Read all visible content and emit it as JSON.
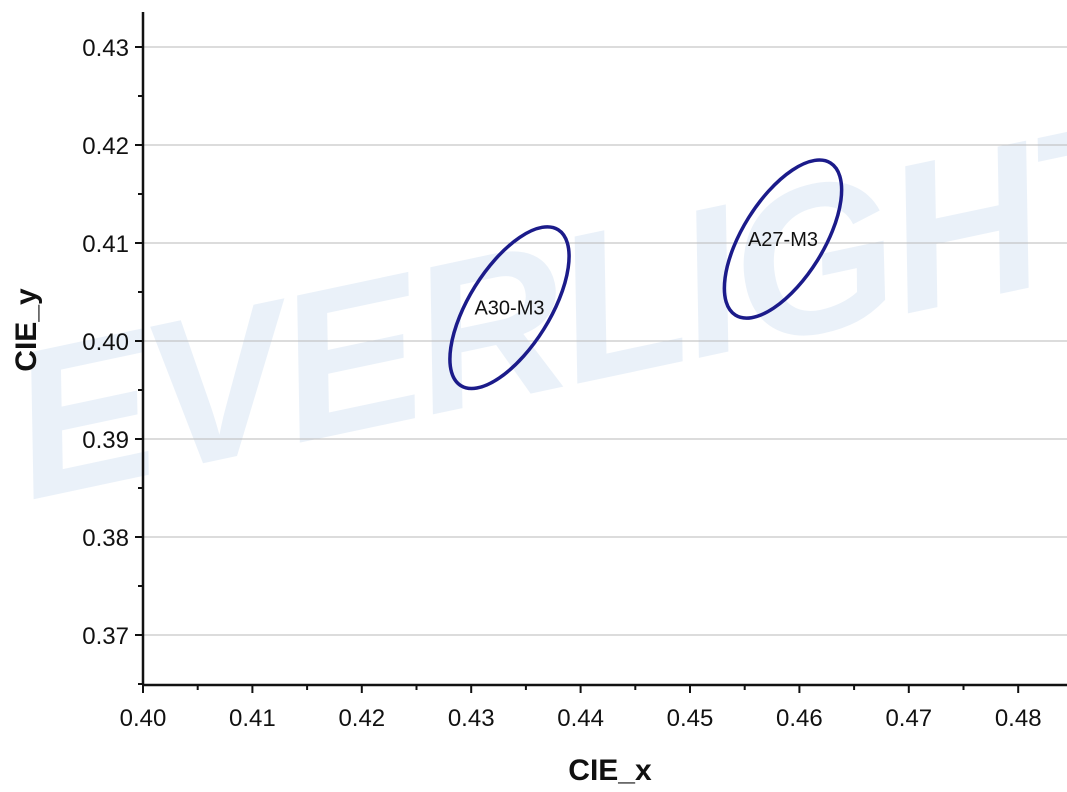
{
  "watermark": "EVERLIGHT",
  "chart_data": {
    "type": "scatter",
    "xlabel": "CIE_x",
    "ylabel": "CIE_y",
    "xlim": [
      0.4,
      0.485
    ],
    "ylim": [
      0.365,
      0.434
    ],
    "xticks": [
      "0.40",
      "0.41",
      "0.42",
      "0.43",
      "0.44",
      "0.45",
      "0.46",
      "0.47",
      "0.48"
    ],
    "yticks": [
      "0.37",
      "0.38",
      "0.39",
      "0.40",
      "0.41",
      "0.42",
      "0.43"
    ],
    "grid": "horizontal",
    "colors": {
      "ellipse": "#1b1b8a",
      "grid": "#b9b9b9",
      "axis": "#111111",
      "watermark": "#3a7fc8"
    },
    "series": [
      {
        "name": "A30-M3",
        "shape": "ellipse",
        "center_x": 0.4335,
        "center_y": 0.4034,
        "rotation_deg": 58,
        "semi_major": 0.0084,
        "semi_minor": 0.0037,
        "label": "A30-M3"
      },
      {
        "name": "A27-M3",
        "shape": "ellipse",
        "center_x": 0.4585,
        "center_y": 0.4104,
        "rotation_deg": 58,
        "semi_major": 0.0082,
        "semi_minor": 0.0037,
        "label": "A27-M3"
      }
    ]
  }
}
